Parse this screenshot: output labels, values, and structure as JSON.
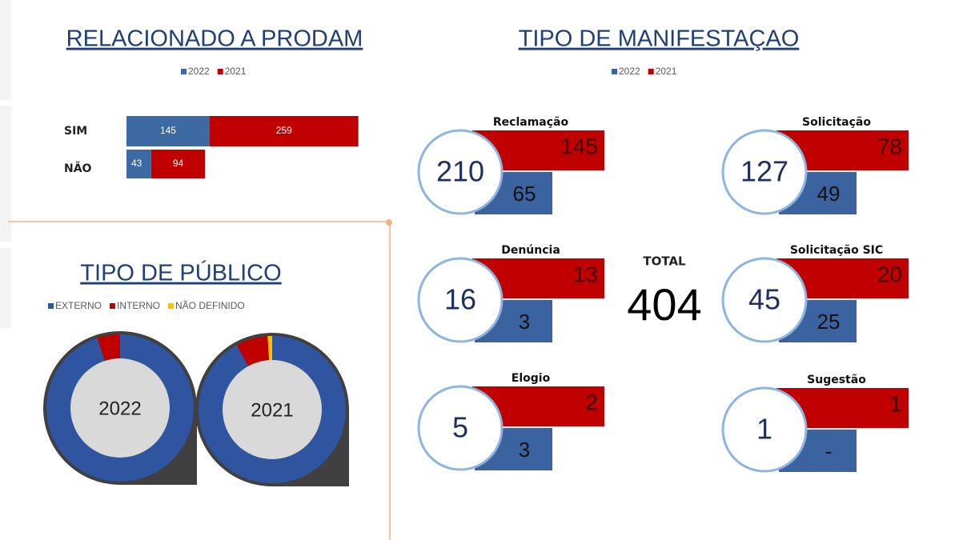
{
  "chart_data": [
    {
      "type": "hbar-stacked",
      "title": "RELACIONADO A PRODAM",
      "categories": [
        "SIM",
        "NÃO"
      ],
      "series": [
        {
          "name": "2022",
          "color": "#3d6aa3",
          "values": [
            145,
            43
          ]
        },
        {
          "name": "2021",
          "color": "#c00000",
          "values": [
            259,
            94
          ]
        }
      ]
    },
    {
      "type": "donut",
      "title": "TIPO DE PÚBLICO",
      "categories": [
        "EXTERNO",
        "INTERNO",
        "NÃO DEFINIDO"
      ],
      "colors": [
        "#2f55a0",
        "#c00000",
        "#ffc000"
      ],
      "series": [
        {
          "name": "2022",
          "values": [
            95,
            5,
            0
          ]
        },
        {
          "name": "2021",
          "values": [
            92,
            7,
            1
          ]
        }
      ]
    },
    {
      "type": "cards",
      "title": "TIPO DE MANIFESTAÇAO",
      "categories": [
        "Reclamação",
        "Solicitação",
        "Denúncia",
        "Solicitação  SIC",
        "Elogio",
        "Sugestão"
      ],
      "totals": [
        210,
        127,
        16,
        45,
        5,
        1
      ],
      "series": [
        {
          "name": "2022",
          "color": "#3a63a0",
          "values": [
            65,
            49,
            3,
            25,
            3,
            0
          ],
          "value_labels": [
            "65",
            "49",
            "3",
            "25",
            "3",
            "-"
          ]
        },
        {
          "name": "2021",
          "color": "#c00000",
          "values": [
            145,
            78,
            13,
            20,
            2,
            1
          ]
        }
      ],
      "total_label": "TOTAL",
      "total": 404
    }
  ]
}
